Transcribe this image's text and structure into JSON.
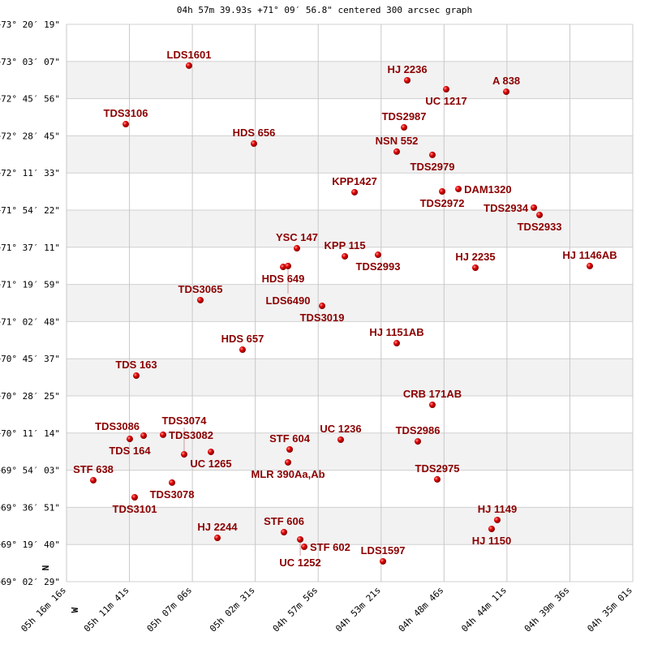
{
  "chart_data": {
    "type": "scatter",
    "title": "04h 57m 39.93s +71° 09′ 56.8\" centered 300 arcsec graph",
    "x_unit": "RA (hours)",
    "y_unit": "Dec (degrees)",
    "xlim": [
      5.27111,
      4.58361
    ],
    "ylim": [
      69.0414,
      73.3386
    ],
    "grid": true,
    "x_ticks": [
      "05h 16m 16s",
      "05h 11m 41s",
      "05h 07m 06s",
      "05h 02m 31s",
      "04h 57m 56s",
      "04h 53m 21s",
      "04h 48m 46s",
      "04h 44m 11s",
      "04h 39m 36s",
      "04h 35m 01s"
    ],
    "y_ticks": [
      "+73° 20′ 19\"",
      "+73° 03′ 07\"",
      "+72° 45′ 56\"",
      "+72° 28′ 45\"",
      "+72° 11′ 33\"",
      "+71° 54′ 22\"",
      "+71° 37′ 11\"",
      "+71° 19′ 59\"",
      "+71° 02′ 48\"",
      "+70° 45′ 37\"",
      "+70° 28′ 25\"",
      "+70° 11′ 14\"",
      "+69° 54′ 03\"",
      "+69° 36′ 51\"",
      "+69° 19′ 40\"",
      "+69° 02′ 29\""
    ],
    "direction_labels": {
      "north": "N",
      "west": "W"
    },
    "point_color": "#dd0000",
    "label_color": "#8b0000",
    "points": [
      {
        "name": "LDS1601",
        "ra": 5.1224,
        "dec": 73.02
      },
      {
        "name": "HJ 2236",
        "ra": 4.8574,
        "dec": 72.907
      },
      {
        "name": "UC 1217",
        "ra": 4.8101,
        "dec": 72.838
      },
      {
        "name": "A  838",
        "ra": 4.7372,
        "dec": 72.819
      },
      {
        "name": "TDS3106",
        "ra": 5.1992,
        "dec": 72.569
      },
      {
        "name": "TDS2987",
        "ra": 4.8613,
        "dec": 72.544
      },
      {
        "name": "HDS 656",
        "ra": 5.0436,
        "dec": 72.419
      },
      {
        "name": "NSN 552",
        "ra": 4.8702,
        "dec": 72.357
      },
      {
        "name": "TDS2979",
        "ra": 4.8269,
        "dec": 72.332
      },
      {
        "name": "KPP1427",
        "ra": 4.9214,
        "dec": 72.044
      },
      {
        "name": "TDS2972",
        "ra": 4.815,
        "dec": 72.05
      },
      {
        "name": "DAM1320",
        "ra": 4.7953,
        "dec": 72.069
      },
      {
        "name": "TDS2934",
        "ra": 4.7037,
        "dec": 71.925
      },
      {
        "name": "TDS2933",
        "ra": 4.6968,
        "dec": 71.869
      },
      {
        "name": "YSC 147",
        "ra": 4.9914,
        "dec": 71.612
      },
      {
        "name": "KPP 115",
        "ra": 4.9332,
        "dec": 71.55
      },
      {
        "name": "TDS2993",
        "ra": 4.8929,
        "dec": 71.562
      },
      {
        "name": "HDS 649",
        "ra": 5.0081,
        "dec": 71.468
      },
      {
        "name": "LDS6490",
        "ra": 5.0022,
        "dec": 71.475
      },
      {
        "name": "HJ 2235",
        "ra": 4.7747,
        "dec": 71.462
      },
      {
        "name": "HJ 1146AB",
        "ra": 4.6358,
        "dec": 71.475
      },
      {
        "name": "TDS3065",
        "ra": 5.1086,
        "dec": 71.212
      },
      {
        "name": "TDS3019",
        "ra": 4.9608,
        "dec": 71.168
      },
      {
        "name": "HDS 657",
        "ra": 5.0574,
        "dec": 70.83
      },
      {
        "name": "HJ 1151AB",
        "ra": 4.8702,
        "dec": 70.88
      },
      {
        "name": "TDS 163",
        "ra": 5.1864,
        "dec": 70.63
      },
      {
        "name": "CRB 171AB",
        "ra": 4.8269,
        "dec": 70.405
      },
      {
        "name": "TDS 164",
        "ra": 5.1943,
        "dec": 70.142
      },
      {
        "name": "TDS3086",
        "ra": 5.1775,
        "dec": 70.167
      },
      {
        "name": "TDS3082",
        "ra": 5.1539,
        "dec": 70.174
      },
      {
        "name": "UC 1236",
        "ra": 4.9382,
        "dec": 70.136
      },
      {
        "name": "TDS2986",
        "ra": 4.8446,
        "dec": 70.123
      },
      {
        "name": "STF 604",
        "ra": 5.0002,
        "dec": 70.061
      },
      {
        "name": "UC 1265",
        "ra": 5.0958,
        "dec": 70.042
      },
      {
        "name": "TDS3074",
        "ra": 5.1283,
        "dec": 70.023
      },
      {
        "name": "MLR 390Aa,Ab",
        "ra": 5.0022,
        "dec": 69.961
      },
      {
        "name": "STF 638",
        "ra": 5.2386,
        "dec": 69.823
      },
      {
        "name": "TDS3078",
        "ra": 5.143,
        "dec": 69.805
      },
      {
        "name": "TDS2975",
        "ra": 4.821,
        "dec": 69.83
      },
      {
        "name": "TDS3101",
        "ra": 5.1884,
        "dec": 69.692
      },
      {
        "name": "HJ 1149",
        "ra": 4.7481,
        "dec": 69.517
      },
      {
        "name": "HJ 1150",
        "ra": 4.755,
        "dec": 69.448
      },
      {
        "name": "HJ 2244",
        "ra": 5.0879,
        "dec": 69.379
      },
      {
        "name": "STF 606",
        "ra": 5.0071,
        "dec": 69.423
      },
      {
        "name": "UC 1252",
        "ra": 4.9874,
        "dec": 69.367
      },
      {
        "name": "STF 602",
        "ra": 4.9825,
        "dec": 69.31
      },
      {
        "name": "LDS1597",
        "ra": 4.8869,
        "dec": 69.198
      }
    ]
  }
}
